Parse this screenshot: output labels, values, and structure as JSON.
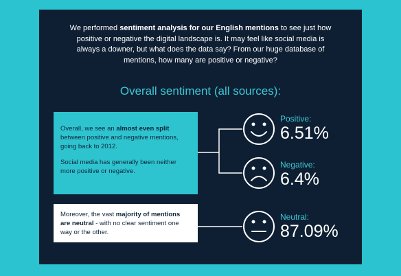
{
  "intro": [
    {
      "text": "We performed "
    },
    {
      "text": "sentiment analysis for our English mentions",
      "bold": true
    },
    {
      "text": " to see just how positive or negative the digital landscape is. It may feel like social media is always a downer, but what does the data say? From our huge database of mentions, how many are positive or negative?"
    }
  ],
  "heading": "Overall sentiment (all sources):",
  "box1": [
    [
      {
        "text": "Overall, we see an "
      },
      {
        "text": "almost even split",
        "bold": true
      },
      {
        "text": " between positive and negative mentions, going back to 2012."
      }
    ],
    [
      {
        "text": "Social media has generally been neither more positive or negative."
      }
    ]
  ],
  "box2": [
    [
      {
        "text": "Moreover, the vast "
      },
      {
        "text": "majority of mentions are neutral",
        "bold": true
      },
      {
        "text": " - with no clear sentiment one way or the other."
      }
    ]
  ],
  "sentiments": [
    {
      "label": "Positive:",
      "value": "6.51%"
    },
    {
      "label": "Negative:",
      "value": "6.4%"
    },
    {
      "label": "Neutral:",
      "value": "87.09%"
    }
  ]
}
